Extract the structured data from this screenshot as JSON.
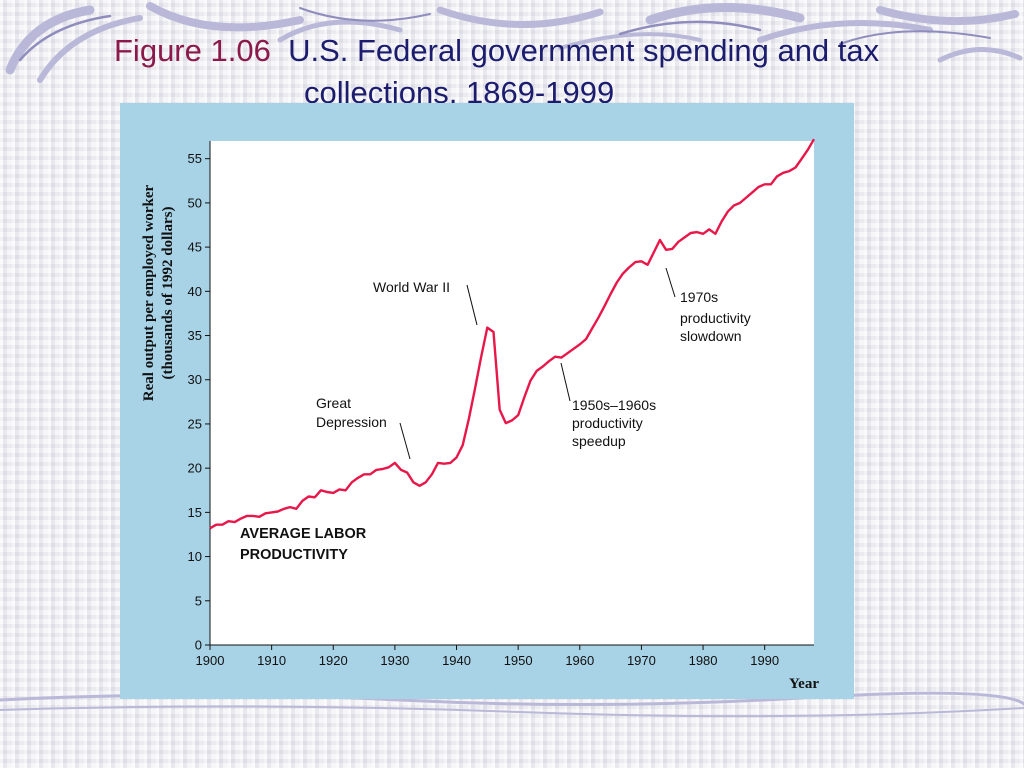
{
  "slide": {
    "title_number": "Figure 1.06",
    "title_rest": "U.S. Federal government spending and tax",
    "title_line2": "collections, 1869-1999"
  },
  "chart_data": {
    "type": "line",
    "title": "",
    "xlabel": "Year",
    "ylabel_line1": "Real output per employed worker",
    "ylabel_line2": "(thousands of 1992 dollars)",
    "xlim": [
      1900,
      1998
    ],
    "ylim": [
      0,
      57
    ],
    "xticks": [
      1900,
      1910,
      1920,
      1930,
      1940,
      1950,
      1960,
      1970,
      1980,
      1990
    ],
    "yticks": [
      0,
      5,
      10,
      15,
      20,
      25,
      30,
      35,
      40,
      45,
      50,
      55
    ],
    "grid": false,
    "series": [
      {
        "color": "#e8174a",
        "x": [
          1900,
          1901,
          1902,
          1903,
          1904,
          1905,
          1906,
          1907,
          1908,
          1909,
          1910,
          1911,
          1912,
          1913,
          1914,
          1915,
          1916,
          1917,
          1918,
          1919,
          1920,
          1921,
          1922,
          1923,
          1924,
          1925,
          1926,
          1927,
          1928,
          1929,
          1930,
          1931,
          1932,
          1933,
          1934,
          1935,
          1936,
          1937,
          1938,
          1939,
          1940,
          1941,
          1942,
          1943,
          1944,
          1945,
          1946,
          1947,
          1948,
          1949,
          1950,
          1951,
          1952,
          1953,
          1954,
          1955,
          1956,
          1957,
          1958,
          1959,
          1960,
          1961,
          1962,
          1963,
          1964,
          1965,
          1966,
          1967,
          1968,
          1969,
          1970,
          1971,
          1972,
          1973,
          1974,
          1975,
          1976,
          1977,
          1978,
          1979,
          1980,
          1981,
          1982,
          1983,
          1984,
          1985,
          1986,
          1987,
          1988,
          1989,
          1990,
          1991,
          1992,
          1993,
          1994,
          1995,
          1996,
          1997,
          1998
        ],
        "y": [
          13.2,
          13.6,
          13.6,
          14.0,
          13.9,
          14.3,
          14.6,
          14.6,
          14.5,
          14.9,
          15.0,
          15.1,
          15.4,
          15.6,
          15.4,
          16.3,
          16.8,
          16.7,
          17.5,
          17.3,
          17.2,
          17.6,
          17.5,
          18.4,
          18.9,
          19.3,
          19.3,
          19.8,
          19.9,
          20.1,
          20.6,
          19.8,
          19.5,
          18.4,
          18.0,
          18.4,
          19.3,
          20.6,
          20.5,
          20.6,
          21.2,
          22.6,
          25.6,
          29.0,
          32.6,
          35.9,
          35.4,
          26.6,
          25.1,
          25.4,
          26.0,
          28.0,
          29.9,
          31.0,
          31.5,
          32.1,
          32.6,
          32.5,
          33.0,
          33.5,
          34.0,
          34.6,
          35.8,
          37.0,
          38.3,
          39.7,
          41.0,
          42.0,
          42.7,
          43.3,
          43.4,
          43.0,
          44.4,
          45.8,
          44.7,
          44.8,
          45.6,
          46.1,
          46.6,
          46.7,
          46.5,
          47.0,
          46.5,
          47.9,
          49.0,
          49.7,
          50.0,
          50.6,
          51.2,
          51.8,
          52.1,
          52.1,
          53.0,
          53.4,
          53.6,
          54.0,
          55.0,
          56.0,
          57.2
        ]
      }
    ],
    "annotations": [
      {
        "text": "World War II"
      },
      {
        "lines": [
          "1970s",
          "productivity",
          "slowdown"
        ]
      },
      {
        "lines": [
          "Great",
          "Depression"
        ]
      },
      {
        "lines": [
          "1950s–1960s",
          "productivity",
          "speedup"
        ]
      },
      {
        "lines": [
          "AVERAGE LABOR",
          "PRODUCTIVITY"
        ]
      }
    ]
  }
}
